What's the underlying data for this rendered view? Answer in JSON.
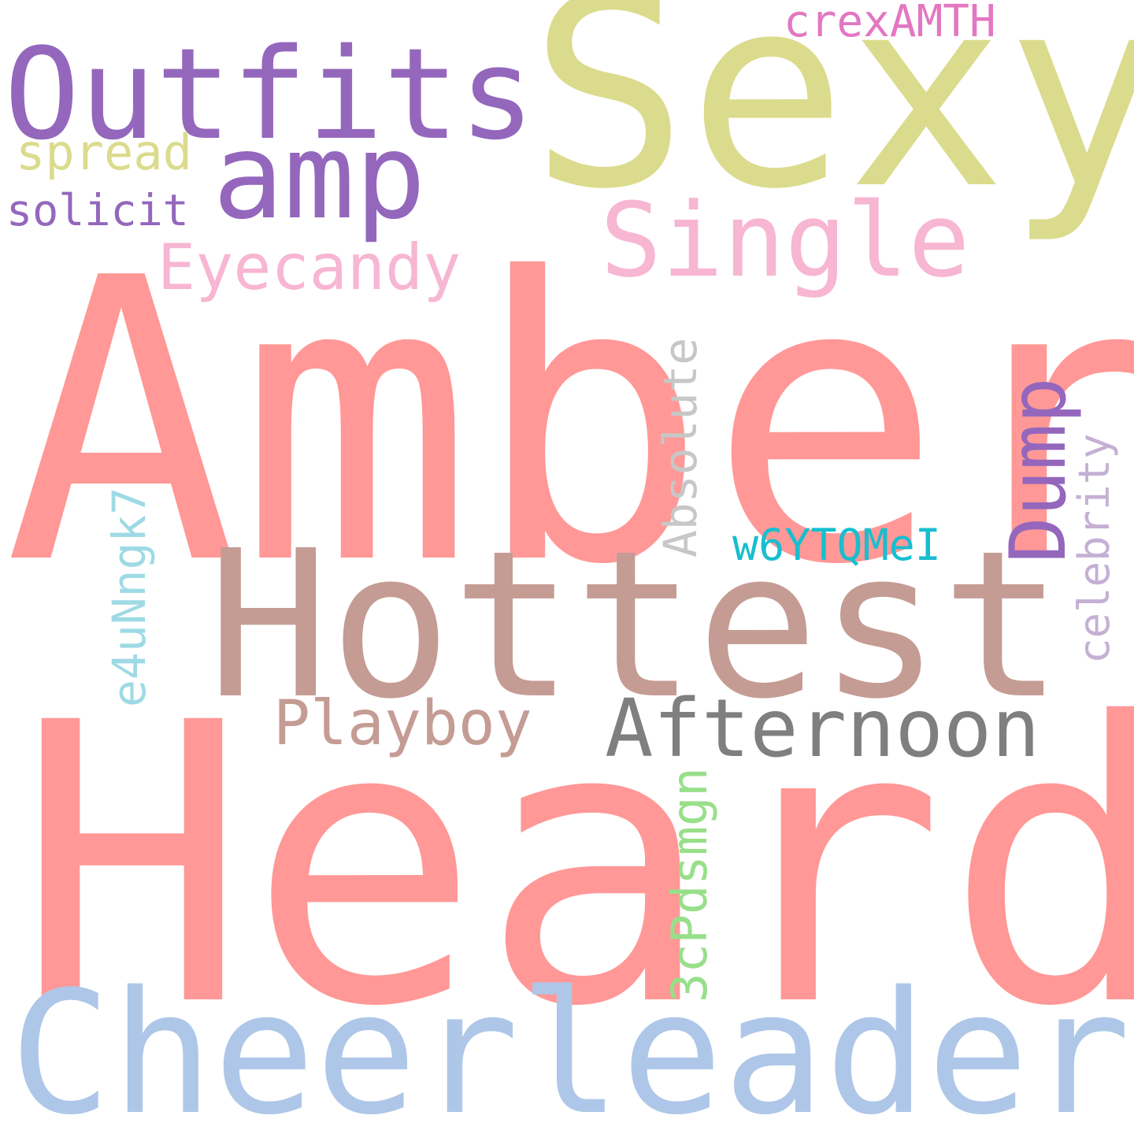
{
  "words": {
    "amber": {
      "text": "Amber",
      "color": "#ff9896"
    },
    "heard": {
      "text": "Heard",
      "color": "#ff9896"
    },
    "cheerleader": {
      "text": "Cheerleader",
      "color": "#aec7e8"
    },
    "hottest": {
      "text": "Hottest",
      "color": "#c49c94"
    },
    "sexy": {
      "text": "Sexy",
      "color": "#dbdb8d"
    },
    "outfits": {
      "text": "Outfits",
      "color": "#9467bd"
    },
    "amp": {
      "text": "amp",
      "color": "#9467bd"
    },
    "single": {
      "text": "Single",
      "color": "#f7b6d2"
    },
    "eyecandy": {
      "text": "Eyecandy",
      "color": "#f7b6d2"
    },
    "afternoon": {
      "text": "Afternoon",
      "color": "#7f7f7f"
    },
    "playboy": {
      "text": "Playboy",
      "color": "#c49c94"
    },
    "spread": {
      "text": "spread",
      "color": "#dbdb8d"
    },
    "solicit": {
      "text": "solicit",
      "color": "#9467bd"
    },
    "crexamth": {
      "text": "crexAMTH",
      "color": "#e377c2"
    },
    "w6ytqmei": {
      "text": "w6YTQMeI",
      "color": "#17becf"
    },
    "absolute": {
      "text": "Absolute",
      "color": "#c7c7c7"
    },
    "dump": {
      "text": "Dump",
      "color": "#9467bd"
    },
    "celebrity": {
      "text": "celebrity",
      "color": "#c5b0d5"
    },
    "e4unngk7": {
      "text": "e4uNngk7",
      "color": "#9edae5"
    },
    "3cpdsmgn": {
      "text": "3cPdsmgn",
      "color": "#98df8a"
    }
  }
}
